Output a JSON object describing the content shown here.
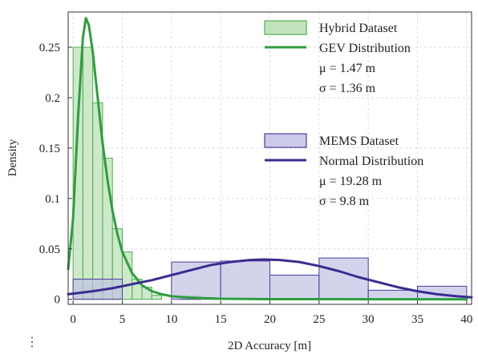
{
  "ellipsis": "⋮",
  "chart_data": {
    "type": "bar",
    "xlabel": "2D Accuracy [m]",
    "ylabel": "Density",
    "xlim": [
      -0.5,
      40.5
    ],
    "ylim": [
      -0.005,
      0.285
    ],
    "x_ticks": [
      0,
      5,
      10,
      15,
      20,
      25,
      30,
      35,
      40
    ],
    "y_ticks": [
      0,
      0.05,
      0.1,
      0.15,
      0.2,
      0.25
    ],
    "x_tick_labels": [
      "0",
      "5",
      "10",
      "15",
      "20",
      "25",
      "30",
      "35",
      "40"
    ],
    "y_tick_labels": [
      "0",
      "0.05",
      "0.1",
      "0.15",
      "0.2",
      "0.25"
    ],
    "grid": true,
    "legend_placement": "top-right",
    "series": [
      {
        "name": "Hybrid Dataset",
        "kind": "histogram",
        "color": "#4caf50",
        "fill": "#b9deb4",
        "bins": [
          {
            "x0": 0,
            "x1": 1,
            "value": 0.25
          },
          {
            "x0": 1,
            "x1": 2,
            "value": 0.25
          },
          {
            "x0": 2,
            "x1": 3,
            "value": 0.195
          },
          {
            "x0": 3,
            "x1": 4,
            "value": 0.14
          },
          {
            "x0": 4,
            "x1": 5,
            "value": 0.07
          },
          {
            "x0": 5,
            "x1": 6,
            "value": 0.047
          },
          {
            "x0": 6,
            "x1": 7,
            "value": 0.02
          },
          {
            "x0": 7,
            "x1": 8,
            "value": 0.012
          },
          {
            "x0": 8,
            "x1": 9,
            "value": 0.004
          },
          {
            "x0": 11,
            "x1": 13,
            "value": 0.003
          }
        ]
      },
      {
        "name": "GEV Distribution",
        "kind": "line",
        "color": "#2e9e3f",
        "points": [
          [
            -0.5,
            0.03
          ],
          [
            0,
            0.08
          ],
          [
            0.5,
            0.18
          ],
          [
            1,
            0.26
          ],
          [
            1.3,
            0.279
          ],
          [
            1.6,
            0.272
          ],
          [
            2,
            0.245
          ],
          [
            2.5,
            0.2
          ],
          [
            3,
            0.155
          ],
          [
            3.5,
            0.118
          ],
          [
            4,
            0.088
          ],
          [
            4.5,
            0.065
          ],
          [
            5,
            0.047
          ],
          [
            6,
            0.026
          ],
          [
            7,
            0.014
          ],
          [
            8,
            0.008
          ],
          [
            9,
            0.005
          ],
          [
            10,
            0.003
          ],
          [
            12,
            0.0015
          ],
          [
            15,
            0.0006
          ],
          [
            20,
            0.0002
          ],
          [
            30,
            5e-05
          ],
          [
            40,
            0.0
          ]
        ]
      },
      {
        "name": "MEMS Dataset",
        "kind": "histogram",
        "color": "#4b3f9a",
        "fill": "#c2c1e4",
        "bins": [
          {
            "x0": 0,
            "x1": 5,
            "value": 0.02
          },
          {
            "x0": 10,
            "x1": 15,
            "value": 0.037
          },
          {
            "x0": 15,
            "x1": 20,
            "value": 0.038
          },
          {
            "x0": 20,
            "x1": 25,
            "value": 0.024
          },
          {
            "x0": 25,
            "x1": 30,
            "value": 0.041
          },
          {
            "x0": 30,
            "x1": 35,
            "value": 0.009
          },
          {
            "x0": 35,
            "x1": 40,
            "value": 0.013
          }
        ]
      },
      {
        "name": "Normal Distribution",
        "kind": "line",
        "color": "#3a2d8f",
        "points": [
          [
            -0.5,
            0.005
          ],
          [
            2,
            0.008
          ],
          [
            4,
            0.011
          ],
          [
            6,
            0.015
          ],
          [
            8,
            0.019
          ],
          [
            10,
            0.024
          ],
          [
            12,
            0.029
          ],
          [
            14,
            0.034
          ],
          [
            16,
            0.037
          ],
          [
            18,
            0.039
          ],
          [
            19.28,
            0.0395
          ],
          [
            21,
            0.039
          ],
          [
            23,
            0.037
          ],
          [
            25,
            0.033
          ],
          [
            27,
            0.028
          ],
          [
            29,
            0.022
          ],
          [
            31,
            0.017
          ],
          [
            33,
            0.012
          ],
          [
            35,
            0.008
          ],
          [
            37,
            0.005
          ],
          [
            39,
            0.003
          ],
          [
            40.5,
            0.002
          ]
        ]
      }
    ],
    "legend_groups": [
      {
        "entries": [
          {
            "label": "Hybrid Dataset",
            "symbol": "patch",
            "fill": "#b9deb4",
            "stroke": "#4caf50"
          },
          {
            "label": "GEV Distribution",
            "symbol": "line",
            "stroke": "#2e9e3f"
          }
        ],
        "stats": [
          "μ = 1.47 m",
          "σ = 1.36 m"
        ]
      },
      {
        "entries": [
          {
            "label": "MEMS Dataset",
            "symbol": "patch",
            "fill": "#c2c1e4",
            "stroke": "#4b3f9a"
          },
          {
            "label": "Normal Distribution",
            "symbol": "line",
            "stroke": "#3a2d8f"
          }
        ],
        "stats": [
          "μ = 19.28 m",
          "σ = 9.8 m"
        ]
      }
    ]
  }
}
